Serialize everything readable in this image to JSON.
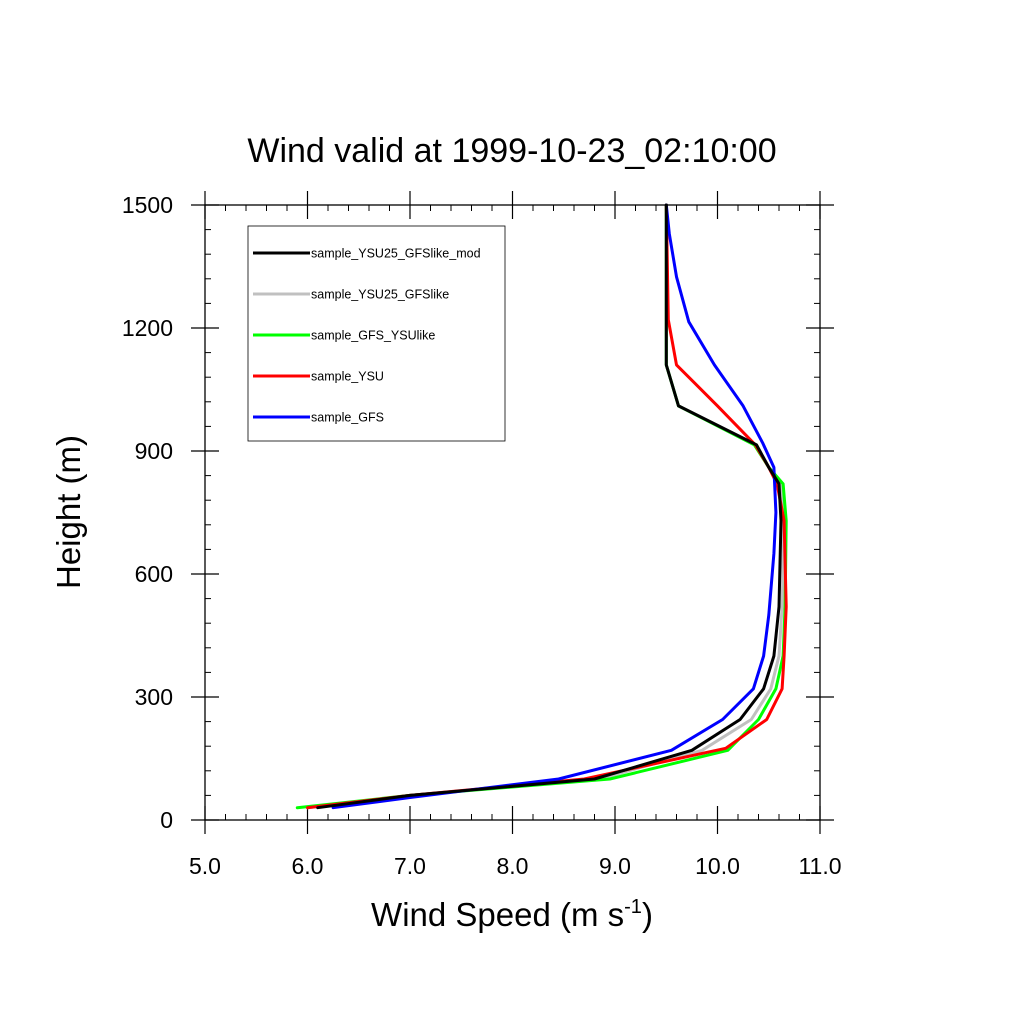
{
  "chart_data": {
    "type": "line",
    "title": "Wind valid at 1999-10-23_02:10:00",
    "xlabel": "Wind Speed (m s",
    "xlabel_superscript": "-1",
    "xlabel_suffix": ")",
    "ylabel": "Height (m)",
    "xlim": [
      5.0,
      11.0
    ],
    "ylim": [
      0,
      1500
    ],
    "x_ticks": [
      {
        "value": 5.0,
        "label": "5.0"
      },
      {
        "value": 6.0,
        "label": "6.0"
      },
      {
        "value": 7.0,
        "label": "7.0"
      },
      {
        "value": 8.0,
        "label": "8.0"
      },
      {
        "value": 9.0,
        "label": "9.0"
      },
      {
        "value": 10.0,
        "label": "10.0"
      },
      {
        "value": 11.0,
        "label": "11.0"
      }
    ],
    "y_ticks": [
      {
        "value": 0,
        "label": "0"
      },
      {
        "value": 300,
        "label": "300"
      },
      {
        "value": 600,
        "label": "600"
      },
      {
        "value": 900,
        "label": "900"
      },
      {
        "value": 1200,
        "label": "1200"
      },
      {
        "value": 1500,
        "label": "1500"
      }
    ],
    "grid": false,
    "legend_position": "top-left",
    "series": [
      {
        "name": "sample_YSU25_GFSlike_mod",
        "color": "#000000",
        "x": [
          6.1,
          7.0,
          8.8,
          9.75,
          10.22,
          10.45,
          10.55,
          10.6,
          10.62,
          10.6,
          10.5,
          10.38,
          9.62,
          9.5,
          9.5,
          9.5
        ],
        "y": [
          30,
          60,
          100,
          170,
          245,
          320,
          400,
          520,
          730,
          820,
          860,
          915,
          1010,
          1110,
          1200,
          1500
        ]
      },
      {
        "name": "sample_YSU25_GFSlike",
        "color": "#c0c0c0",
        "x": [
          6.0,
          7.0,
          8.85,
          9.85,
          10.33,
          10.52,
          10.6,
          10.63,
          10.65,
          10.62,
          10.5,
          10.38,
          9.62,
          9.5,
          9.5,
          9.5
        ],
        "y": [
          30,
          60,
          100,
          170,
          245,
          320,
          400,
          520,
          730,
          820,
          860,
          915,
          1010,
          1110,
          1200,
          1500
        ]
      },
      {
        "name": "sample_GFS_YSUlike",
        "color": "#00ff00",
        "x": [
          5.9,
          7.0,
          8.95,
          10.1,
          10.4,
          10.57,
          10.64,
          10.66,
          10.67,
          10.64,
          10.5,
          10.36,
          9.62,
          9.5,
          9.5,
          9.5
        ],
        "y": [
          30,
          60,
          100,
          170,
          245,
          320,
          400,
          520,
          730,
          820,
          860,
          915,
          1010,
          1110,
          1200,
          1500
        ]
      },
      {
        "name": "sample_YSU",
        "color": "#ff0000",
        "x": [
          6.0,
          7.0,
          8.7,
          10.08,
          10.48,
          10.63,
          10.65,
          10.67,
          10.65,
          10.58,
          10.5,
          10.37,
          10.0,
          9.6,
          9.52,
          9.5
        ],
        "y": [
          30,
          60,
          100,
          175,
          245,
          320,
          400,
          520,
          730,
          820,
          860,
          915,
          1010,
          1110,
          1220,
          1500
        ]
      },
      {
        "name": "sample_GFS",
        "color": "#0000ff",
        "x": [
          6.25,
          7.0,
          8.45,
          9.55,
          10.05,
          10.35,
          10.45,
          10.5,
          10.55,
          10.57,
          10.55,
          10.44,
          10.25,
          9.97,
          9.72,
          9.6,
          9.53,
          9.5
        ],
        "y": [
          30,
          55,
          100,
          170,
          245,
          320,
          400,
          500,
          650,
          750,
          860,
          920,
          1010,
          1110,
          1215,
          1325,
          1430,
          1500
        ]
      }
    ]
  }
}
